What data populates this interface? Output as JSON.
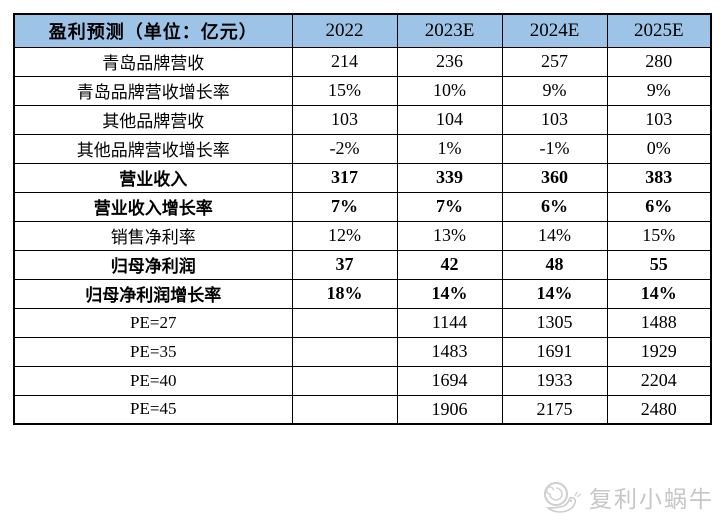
{
  "table": {
    "title": "盈利预测（单位：亿元）",
    "columns": [
      "2022",
      "2023E",
      "2024E",
      "2025E"
    ],
    "rows": [
      {
        "label": "青岛品牌营收",
        "values": [
          "214",
          "236",
          "257",
          "280"
        ],
        "bold": false
      },
      {
        "label": "青岛品牌营收增长率",
        "values": [
          "15%",
          "10%",
          "9%",
          "9%"
        ],
        "bold": false
      },
      {
        "label": "其他品牌营收",
        "values": [
          "103",
          "104",
          "103",
          "103"
        ],
        "bold": false
      },
      {
        "label": "其他品牌营收增长率",
        "values": [
          "-2%",
          "1%",
          "-1%",
          "0%"
        ],
        "bold": false
      },
      {
        "label": "营业收入",
        "values": [
          "317",
          "339",
          "360",
          "383"
        ],
        "bold": true
      },
      {
        "label": "营业收入增长率",
        "values": [
          "7%",
          "7%",
          "6%",
          "6%"
        ],
        "bold": true
      },
      {
        "label": "销售净利率",
        "values": [
          "12%",
          "13%",
          "14%",
          "15%"
        ],
        "bold": false
      },
      {
        "label": "归母净利润",
        "values": [
          "37",
          "42",
          "48",
          "55"
        ],
        "bold": true
      },
      {
        "label": "归母净利润增长率",
        "values": [
          "18%",
          "14%",
          "14%",
          "14%"
        ],
        "bold": true
      },
      {
        "label": "PE=27",
        "values": [
          "",
          "1144",
          "1305",
          "1488"
        ],
        "bold": false
      },
      {
        "label": "PE=35",
        "values": [
          "",
          "1483",
          "1691",
          "1929"
        ],
        "bold": false
      },
      {
        "label": "PE=40",
        "values": [
          "",
          "1694",
          "1933",
          "2204"
        ],
        "bold": false
      },
      {
        "label": "PE=45",
        "values": [
          "",
          "1906",
          "2175",
          "2480"
        ],
        "bold": false
      }
    ]
  },
  "watermark": {
    "text": "复利小蜗牛",
    "icon": "snail-icon"
  },
  "colors": {
    "header_bg": "#9DC3E6",
    "border": "#000000",
    "text": "#000000",
    "watermark": "#c6c6c6"
  }
}
